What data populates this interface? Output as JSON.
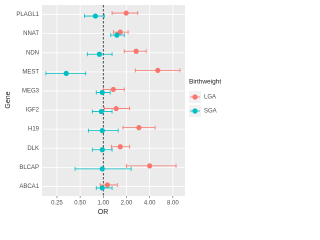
{
  "chart_data": {
    "type": "dot-errorbar",
    "x_label": "OR",
    "y_label": "Gene",
    "legend_title": "Birthweight",
    "categories": [
      "PLAGL1",
      "NNAT",
      "NDN",
      "MEST",
      "MEG3",
      "IGF2",
      "H19",
      "DLK",
      "BLCAP",
      "ABCA1"
    ],
    "series": [
      {
        "name": "LGA",
        "color": "#F8766D",
        "values": [
          1.98,
          1.66,
          2.67,
          5.1,
          1.35,
          1.47,
          2.9,
          1.66,
          4.0,
          1.13
        ],
        "lower": [
          1.3,
          1.35,
          1.87,
          2.6,
          1.0,
          1.03,
          1.8,
          1.27,
          2.0,
          0.91
        ],
        "upper": [
          2.8,
          2.1,
          3.6,
          9.9,
          1.87,
          2.2,
          4.7,
          2.2,
          8.8,
          1.52
        ]
      },
      {
        "name": "SGA",
        "color": "#00BFC4",
        "values": [
          0.79,
          1.5,
          0.89,
          0.33,
          0.97,
          0.94,
          0.97,
          0.97,
          0.97,
          0.97
        ],
        "lower": [
          0.57,
          1.25,
          0.62,
          0.18,
          0.81,
          0.72,
          0.64,
          0.72,
          0.43,
          0.81
        ],
        "upper": [
          1.03,
          1.87,
          1.3,
          0.59,
          1.23,
          1.3,
          1.56,
          1.3,
          2.3,
          1.3
        ]
      }
    ],
    "xscale": "log",
    "xlim": [
      0.16,
      11.5
    ],
    "xticks": [
      0.25,
      {
        "value": 0.5,
        "label": "0.50"
      },
      {
        "value": 1,
        "label": "1.00"
      },
      {
        "value": 2,
        "label": "2.00"
      },
      {
        "value": 4,
        "label": "4.00"
      },
      {
        "value": 8,
        "label": "8.00"
      }
    ],
    "reference_line": 1,
    "grid": true,
    "legend": "right"
  }
}
